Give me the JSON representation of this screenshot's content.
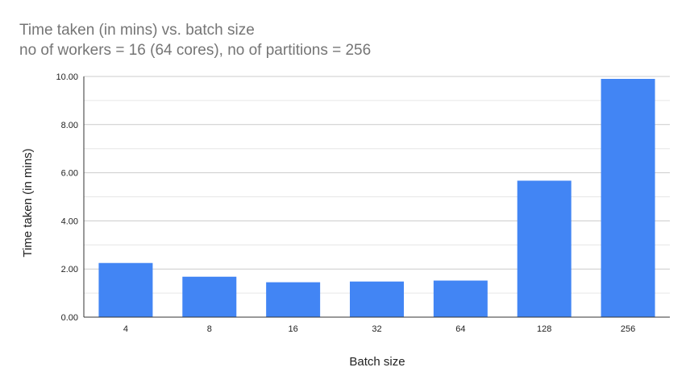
{
  "chart_data": {
    "type": "bar",
    "title": "Time taken (in mins) vs. batch size",
    "subtitle": "no of workers = 16 (64 cores), no of partitions = 256",
    "xlabel": "Batch size",
    "ylabel": "Time taken (in mins)",
    "categories": [
      "4",
      "8",
      "16",
      "32",
      "64",
      "128",
      "256"
    ],
    "values": [
      2.25,
      1.68,
      1.45,
      1.48,
      1.52,
      5.67,
      9.9
    ],
    "ylim": [
      0,
      10
    ],
    "yticks": [
      "0.00",
      "2.00",
      "4.00",
      "6.00",
      "8.00",
      "10.00"
    ],
    "grid": true,
    "bar_color": "#4285f4",
    "gridline_color": "#cccccc",
    "minor_gridline_color": "#e6e6e6",
    "axis_color": "#333333"
  }
}
